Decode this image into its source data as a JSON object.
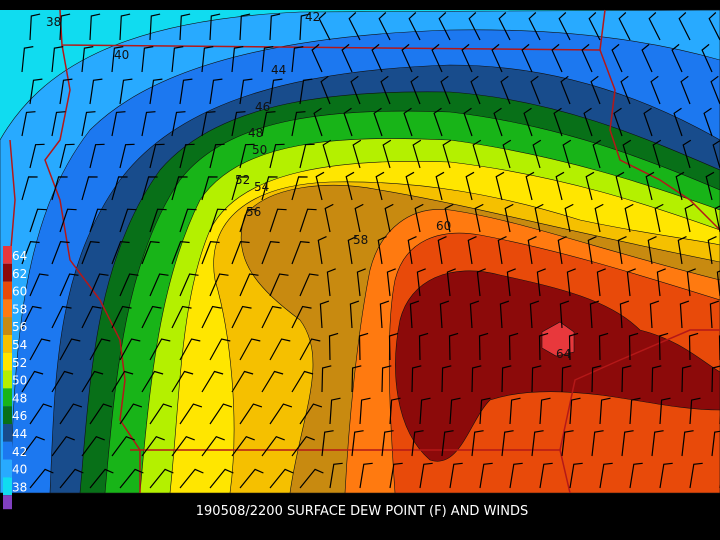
{
  "caption": "190508/2200 SURFACE DEW POINT (F) AND WINDS",
  "legend": [
    {
      "label": "64",
      "color": "#e8383c"
    },
    {
      "label": "62",
      "color": "#8c0a0a"
    },
    {
      "label": "60",
      "color": "#e84a0a"
    },
    {
      "label": "58",
      "color": "#ff7a10"
    },
    {
      "label": "56",
      "color": "#c88a10"
    },
    {
      "label": "54",
      "color": "#f5c000"
    },
    {
      "label": "52",
      "color": "#ffe600"
    },
    {
      "label": "50",
      "color": "#b4f000"
    },
    {
      "label": "48",
      "color": "#18b418"
    },
    {
      "label": "46",
      "color": "#087018"
    },
    {
      "label": "44",
      "color": "#184c8c"
    },
    {
      "label": "42",
      "color": "#1c78f0"
    },
    {
      "label": "40",
      "color": "#28aaff"
    },
    {
      "label": "38",
      "color": "#10dcf0"
    }
  ],
  "legend_bottom_color": "#8040c0",
  "contour_labels": [
    "38",
    "40",
    "42",
    "44",
    "46",
    "48",
    "50",
    "52",
    "54",
    "56",
    "58",
    "60",
    "64"
  ]
}
